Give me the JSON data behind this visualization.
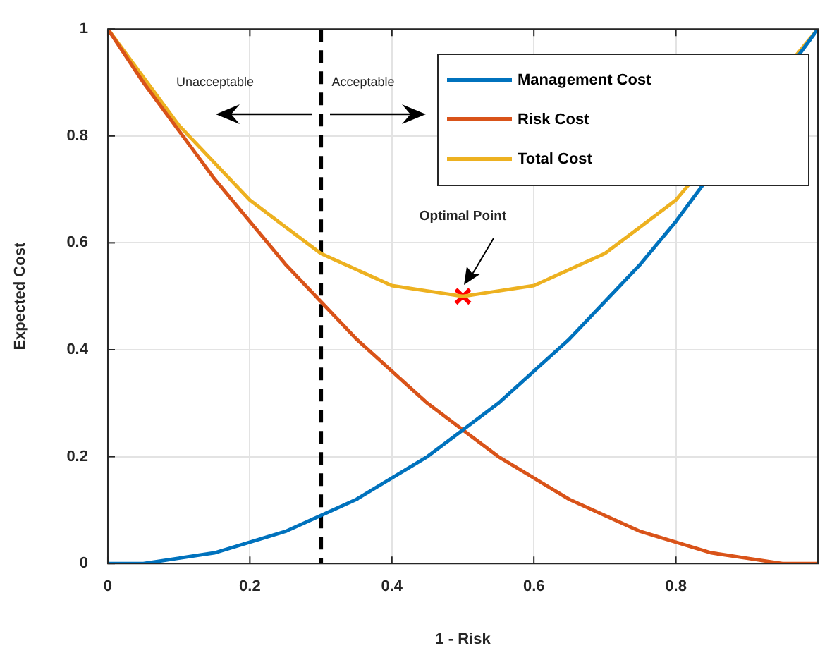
{
  "chart_data": {
    "type": "line",
    "xlabel": "1 - Risk",
    "ylabel": "Expected Cost",
    "xlim": [
      0,
      1
    ],
    "xticks": [
      0,
      0.2,
      0.4,
      0.6,
      0.8
    ],
    "ylim": [
      0,
      1
    ],
    "yticks": [
      0,
      0.2,
      0.4,
      0.6,
      0.8,
      1
    ],
    "grid": true,
    "legend": "top right",
    "marker": "none",
    "line_style": "solid",
    "x": [
      0,
      0.05,
      0.1,
      0.15,
      0.2,
      0.25,
      0.3,
      0.35,
      0.4,
      0.45,
      0.5,
      0.55,
      0.6,
      0.65,
      0.7,
      0.75,
      0.8,
      0.85,
      0.9,
      0.95,
      1
    ],
    "series": [
      {
        "name": "Management Cost",
        "color": "#0072bd",
        "values": [
          0,
          0,
          0.01,
          0.02,
          0.04,
          0.06,
          0.09,
          0.12,
          0.16,
          0.2,
          0.25,
          0.3,
          0.36,
          0.42,
          0.49,
          0.56,
          0.64,
          null,
          null,
          null,
          1
        ]
      },
      {
        "name": "Risk Cost",
        "color": "#d95319",
        "values": [
          1,
          0.9,
          0.81,
          0.72,
          0.64,
          0.56,
          0.49,
          0.42,
          0.36,
          0.3,
          0.25,
          0.2,
          0.16,
          0.12,
          0.09,
          0.06,
          0.04,
          0.02,
          0.01,
          0,
          0
        ]
      },
      {
        "name": "Total Cost",
        "color": "#edb120",
        "values": [
          1,
          0.91,
          0.82,
          0.75,
          0.68,
          0.63,
          0.58,
          0.55,
          0.52,
          0.51,
          0.5,
          0.51,
          0.52,
          0.55,
          0.58,
          0.63,
          0.68,
          null,
          null,
          null,
          1
        ]
      },
      {
        "type": "scatter",
        "color": "#ff0000",
        "marker": "cross",
        "x": [
          0.5
        ],
        "values": [
          0.5
        ]
      }
    ],
    "ref_lines": [
      {
        "axis": "x",
        "value": 0.3,
        "color": "#000000",
        "line_style": "dashed"
      }
    ],
    "annotations": [
      "Unacceptable",
      "Acceptable",
      "Optimal Point"
    ]
  }
}
